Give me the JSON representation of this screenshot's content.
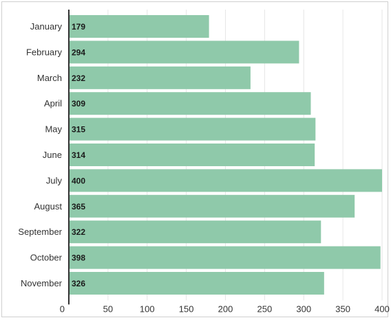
{
  "chart_data": {
    "type": "bar",
    "orientation": "horizontal",
    "categories": [
      "January",
      "February",
      "March",
      "April",
      "May",
      "June",
      "July",
      "August",
      "September",
      "October",
      "November"
    ],
    "values": [
      179,
      294,
      232,
      309,
      315,
      314,
      400,
      365,
      322,
      398,
      326
    ],
    "xlim": [
      0,
      400
    ],
    "xticks": [
      0,
      50,
      100,
      150,
      200,
      250,
      300,
      350,
      400
    ],
    "grid": true,
    "bar_color": "#8fc9aa",
    "title": "",
    "xlabel": "",
    "ylabel": ""
  }
}
